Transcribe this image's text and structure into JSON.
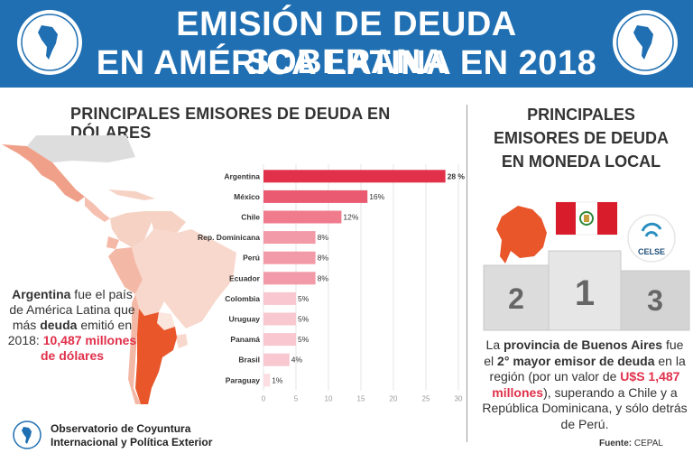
{
  "header": {
    "title_line1": "EMISIÓN DE DEUDA SOBERANA",
    "title_line2": "EN AMÉRICA LATINA EN 2018",
    "logo_text": "Observatorio de Coyuntura Internacional y Política Exterior"
  },
  "left_section": {
    "title": "PRINCIPALES EMISORES DE DEUDA EN DÓLARES"
  },
  "argentina_note": {
    "bold1": "Argentina",
    "text1": " fue el país de América Latina que más ",
    "bold2": "deuda",
    "text2": " emitió en 2018: ",
    "highlight": "10,487 millones de dólares"
  },
  "chart_data": {
    "type": "bar",
    "orientation": "horizontal",
    "categories": [
      "Argentina",
      "México",
      "Chile",
      "Rep. Dominicana",
      "Perú",
      "Ecuador",
      "Colombia",
      "Uruguay",
      "Panamá",
      "Brasil",
      "Paraguay"
    ],
    "values": [
      28,
      16,
      12,
      8,
      8,
      8,
      5,
      5,
      5,
      4,
      1
    ],
    "value_labels": [
      "28 %",
      "16%",
      "12%",
      "8%",
      "8%",
      "8%",
      "5%",
      "5%",
      "5%",
      "4%",
      "1%"
    ],
    "xlim": [
      0,
      30
    ],
    "xticks": [
      "0",
      "5",
      "10",
      "15",
      "20",
      "25",
      "30"
    ],
    "grid": true,
    "colors": {
      "Argentina": "#e0304a",
      "México": "#ea5a70",
      "Chile": "#ef7b8d",
      "Rep. Dominicana": "#f29aa8",
      "Perú": "#f29aa8",
      "Ecuador": "#f29aa8",
      "Colombia": "#f8c7cf",
      "Uruguay": "#f8c7cf",
      "Panamá": "#f8c7cf",
      "Brasil": "#f8c7cf",
      "Paraguay": "#fbdde2"
    }
  },
  "right_section": {
    "title_line1": "PRINCIPALES",
    "title_line2": "EMISORES DE DEUDA",
    "title_line3": "EN MONEDA LOCAL",
    "podium": {
      "first": "1",
      "second": "2",
      "third": "3",
      "celse_label": "CELSE"
    },
    "note": {
      "text1": "La ",
      "bold1": "provincia de Buenos Aires",
      "text2": " fue el ",
      "bold2": "2° mayor emisor de deuda",
      "text3": " en la región (por un valor de ",
      "highlight": "U$S 1,487 millones",
      "text4": "), superando a Chile y a República Dominicana, y sólo detrás de Perú."
    }
  },
  "footer": {
    "org_line1": "Observatorio de Coyuntura",
    "org_line2": "Internacional y Política Exterior",
    "source_label": "Fuente:",
    "source_value": "CEPAL"
  },
  "colors": {
    "header_bg": "#1f6fb2",
    "accent_red": "#e0304a",
    "map_orange": "#e8562a"
  }
}
